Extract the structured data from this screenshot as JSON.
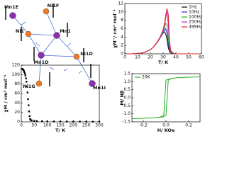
{
  "structure": {
    "labels": [
      "Mn1E",
      "Ni1F",
      "Ni1",
      "Mn1",
      "Mn1D",
      "Ni1D",
      "Ni1G",
      "Mn1I"
    ]
  },
  "chart_data": [
    {
      "type": "line",
      "xlabel": "T/ K",
      "ylabel": "χM''/ cm³ mol⁻¹",
      "xlim": [
        0,
        60
      ],
      "xticks": [
        0,
        10,
        20,
        30,
        40,
        50,
        60
      ],
      "ylim": [
        0,
        12
      ],
      "yticks": [
        0,
        2,
        4,
        6,
        8,
        10,
        12
      ],
      "legend": "top-right",
      "x": [
        2,
        5,
        10,
        15,
        20,
        22,
        24,
        26,
        28,
        29,
        30,
        31,
        32,
        33,
        34,
        35,
        36,
        38,
        40,
        45,
        50,
        55,
        58
      ],
      "series": [
        {
          "name": "1Hz",
          "color": "#000000",
          "values": [
            0,
            0,
            0.05,
            0.3,
            1.0,
            1.5,
            2.2,
            3.0,
            4.0,
            4.6,
            5.0,
            5.2,
            4.8,
            3.5,
            1.5,
            0.5,
            0.2,
            0.1,
            0,
            0,
            0,
            0,
            0
          ]
        },
        {
          "name": "10Hz",
          "color": "#2030d0",
          "values": [
            0,
            0,
            0.05,
            0.3,
            1.0,
            1.5,
            2.3,
            3.0,
            4.0,
            4.5,
            5.0,
            5.6,
            6.0,
            5.0,
            2.5,
            0.8,
            0.3,
            0.1,
            0,
            0,
            0,
            0,
            0
          ]
        },
        {
          "name": "100Hz",
          "color": "#20b020",
          "values": [
            0,
            0,
            0.05,
            0.3,
            1.0,
            1.5,
            2.3,
            3.1,
            4.1,
            4.7,
            5.3,
            6.2,
            7.3,
            7.0,
            4.0,
            1.2,
            0.4,
            0.1,
            0,
            0,
            0,
            0,
            0
          ]
        },
        {
          "name": "250Hz",
          "color": "#d020d0",
          "values": [
            0,
            0,
            0.05,
            0.3,
            1.0,
            1.5,
            2.3,
            3.1,
            4.2,
            4.9,
            5.6,
            6.8,
            8.5,
            10.0,
            7.0,
            2.0,
            0.6,
            0.1,
            0,
            0,
            0,
            0,
            0
          ]
        },
        {
          "name": "499Hz",
          "color": "#e02020",
          "values": [
            0,
            0,
            0.05,
            0.3,
            1.0,
            1.5,
            2.3,
            3.1,
            4.3,
            5.0,
            5.8,
            7.2,
            9.2,
            10.8,
            9.5,
            3.0,
            0.8,
            0.1,
            0,
            0,
            0,
            0,
            0
          ]
        }
      ]
    },
    {
      "type": "scatter",
      "xlabel": "T/ K",
      "ylabel": "χM / cm³ mol⁻¹",
      "xlim": [
        0,
        300
      ],
      "xticks": [
        0,
        50,
        100,
        150,
        200,
        250,
        300
      ],
      "ylim": [
        0,
        120
      ],
      "yticks": [
        0,
        20,
        40,
        60,
        80,
        100,
        120
      ],
      "x": [
        2,
        4,
        6,
        8,
        10,
        12,
        14,
        16,
        18,
        20,
        22,
        24,
        26,
        28,
        30,
        32,
        34,
        36,
        40,
        50,
        60,
        80,
        100,
        125,
        150,
        175,
        200,
        225,
        250,
        275,
        300
      ],
      "series": [
        {
          "name": null,
          "color": "#000000",
          "values": [
            112,
            112,
            111,
            110,
            108,
            105,
            102,
            98,
            92,
            85,
            75,
            62,
            48,
            35,
            22,
            12,
            6,
            4,
            3,
            2,
            1.5,
            1.2,
            1,
            0.8,
            0.7,
            0.6,
            0.5,
            0.5,
            0.4,
            0.4,
            0.3
          ]
        }
      ]
    },
    {
      "type": "line",
      "xlabel": "H/ KOe",
      "ylabel": "M/ Nβ",
      "xlim": [
        -0.3,
        0.3
      ],
      "xticks": [
        -0.2,
        {
          "value": 0,
          "label": "0.0"
        },
        0.2
      ],
      "ylim": [
        -1.5,
        1.5
      ],
      "yticks": [
        -1.5,
        {
          "value": -1,
          "label": "-1.0"
        },
        -0.5,
        {
          "value": 0,
          "label": "0.0"
        },
        0.5,
        {
          "value": 1,
          "label": "1.0"
        },
        1.5
      ],
      "legend": "top-left",
      "x": [
        -0.3,
        -0.1,
        -0.03,
        0.0,
        0.02,
        0.05,
        0.1,
        0.3,
        0.1,
        0.05,
        0.0,
        -0.02,
        -0.05,
        -0.1,
        -0.3
      ],
      "series": [
        {
          "name": "20K",
          "color": "#20b020",
          "values": [
            -1.3,
            -1.25,
            -1.2,
            -1.1,
            1.1,
            1.2,
            1.25,
            1.3,
            1.25,
            1.2,
            1.1,
            -1.1,
            -1.2,
            -1.25,
            -1.3
          ]
        }
      ]
    }
  ]
}
